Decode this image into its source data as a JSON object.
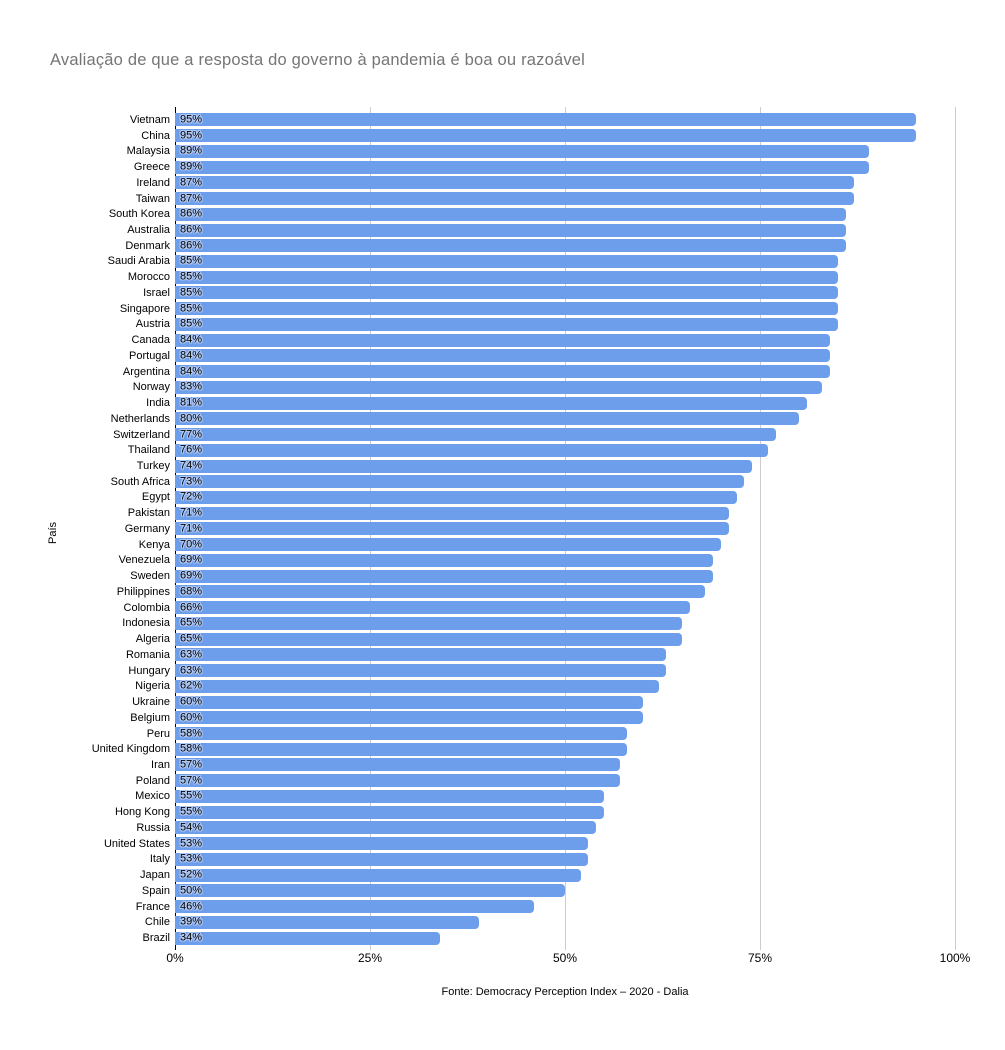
{
  "chart_data": {
    "type": "bar",
    "orientation": "horizontal",
    "title": "Avaliação de que a resposta do governo à pandemia é boa ou razoável",
    "ylabel": "País",
    "xlabel": "",
    "xlim": [
      0,
      100
    ],
    "x_ticks": [
      "0%",
      "25%",
      "50%",
      "75%",
      "100%"
    ],
    "x_tick_values": [
      0,
      25,
      50,
      75,
      100
    ],
    "grid": true,
    "legend": false,
    "value_label_suffix": "%",
    "source": "Fonte: Democracy Perception Index – 2020 - Dalia",
    "categories": [
      "Vietnam",
      "China",
      "Malaysia",
      "Greece",
      "Ireland",
      "Taiwan",
      "South Korea",
      "Australia",
      "Denmark",
      "Saudi Arabia",
      "Morocco",
      "Israel",
      "Singapore",
      "Austria",
      "Canada",
      "Portugal",
      "Argentina",
      "Norway",
      "India",
      "Netherlands",
      "Switzerland",
      "Thailand",
      "Turkey",
      "South Africa",
      "Egypt",
      "Pakistan",
      "Germany",
      "Kenya",
      "Venezuela",
      "Sweden",
      "Philippines",
      "Colombia",
      "Indonesia",
      "Algeria",
      "Romania",
      "Hungary",
      "Nigeria",
      "Ukraine",
      "Belgium",
      "Peru",
      "United Kingdom",
      "Iran",
      "Poland",
      "Mexico",
      "Hong Kong",
      "Russia",
      "United States",
      "Italy",
      "Japan",
      "Spain",
      "France",
      "Chile",
      "Brazil"
    ],
    "values": [
      95,
      95,
      89,
      89,
      87,
      87,
      86,
      86,
      86,
      85,
      85,
      85,
      85,
      85,
      84,
      84,
      84,
      83,
      81,
      80,
      77,
      76,
      74,
      73,
      72,
      71,
      71,
      70,
      69,
      69,
      68,
      66,
      65,
      65,
      63,
      63,
      62,
      60,
      60,
      58,
      58,
      57,
      57,
      55,
      55,
      54,
      53,
      53,
      52,
      50,
      46,
      39,
      34
    ],
    "colors": {
      "bar": "#6d9eeb",
      "value_label_halo": "#b0c9f5",
      "gridline": "#cccccc",
      "axis_line": "#000000",
      "title": "#757575",
      "text": "#000000"
    }
  }
}
